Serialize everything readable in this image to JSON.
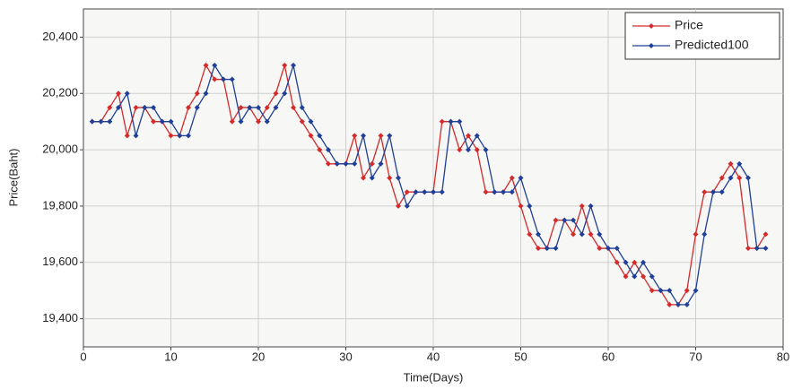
{
  "chart_data": {
    "type": "line",
    "xlabel": "Time(Days)",
    "ylabel": "Price(Baht)",
    "x": [
      1,
      2,
      3,
      4,
      5,
      6,
      7,
      8,
      9,
      10,
      11,
      12,
      13,
      14,
      15,
      16,
      17,
      18,
      19,
      20,
      21,
      22,
      23,
      24,
      25,
      26,
      27,
      28,
      29,
      30,
      31,
      32,
      33,
      34,
      35,
      36,
      37,
      38,
      39,
      40,
      41,
      42,
      43,
      44,
      45,
      46,
      47,
      48,
      49,
      50,
      51,
      52,
      53,
      54,
      55,
      56,
      57,
      58,
      59,
      60,
      61,
      62,
      63,
      64,
      65,
      66,
      67,
      68,
      69,
      70,
      71,
      72,
      73,
      74,
      75,
      76,
      77,
      78
    ],
    "series": [
      {
        "name": "Price",
        "color": "#d42a2a",
        "values": [
          20100,
          20100,
          20150,
          20200,
          20050,
          20150,
          20150,
          20100,
          20100,
          20050,
          20050,
          20150,
          20200,
          20300,
          20250,
          20250,
          20100,
          20150,
          20150,
          20100,
          20150,
          20200,
          20300,
          20150,
          20100,
          20050,
          20000,
          19950,
          19950,
          19950,
          20050,
          19900,
          19950,
          20050,
          19900,
          19800,
          19850,
          19850,
          19850,
          19850,
          20100,
          20100,
          20000,
          20050,
          20000,
          19850,
          19850,
          19850,
          19900,
          19800,
          19700,
          19650,
          19650,
          19750,
          19750,
          19700,
          19800,
          19700,
          19650,
          19650,
          19600,
          19550,
          19600,
          19550,
          19500,
          19500,
          19450,
          19450,
          19500,
          19700,
          19850,
          19850,
          19900,
          19950,
          19900,
          19650,
          19650,
          19700
        ]
      },
      {
        "name": "Predicted100",
        "color": "#1f3f99",
        "values": [
          20100,
          20100,
          20100,
          20150,
          20200,
          20050,
          20150,
          20150,
          20100,
          20100,
          20050,
          20050,
          20150,
          20200,
          20300,
          20250,
          20250,
          20100,
          20150,
          20150,
          20100,
          20150,
          20200,
          20300,
          20150,
          20100,
          20050,
          20000,
          19950,
          19950,
          19950,
          20050,
          19900,
          19950,
          20050,
          19900,
          19800,
          19850,
          19850,
          19850,
          19850,
          20100,
          20100,
          20000,
          20050,
          20000,
          19850,
          19850,
          19850,
          19900,
          19800,
          19700,
          19650,
          19650,
          19750,
          19750,
          19700,
          19800,
          19700,
          19650,
          19650,
          19600,
          19550,
          19600,
          19550,
          19500,
          19500,
          19450,
          19450,
          19500,
          19700,
          19850,
          19850,
          19900,
          19950,
          19900,
          19650,
          19650
        ]
      }
    ],
    "xlim": [
      0,
      80
    ],
    "xticks": [
      0,
      10,
      20,
      30,
      40,
      50,
      60,
      70,
      80
    ],
    "ylim": [
      19300,
      20500
    ],
    "yticks": [
      {
        "value": 19400,
        "label": "19,400"
      },
      {
        "value": 19600,
        "label": "19,600"
      },
      {
        "value": 19800,
        "label": "19,800"
      },
      {
        "value": 20000,
        "label": "20,000"
      },
      {
        "value": 20200,
        "label": "20,200"
      },
      {
        "value": 20400,
        "label": "20,400"
      }
    ],
    "grid": true,
    "legend": "top-right"
  }
}
